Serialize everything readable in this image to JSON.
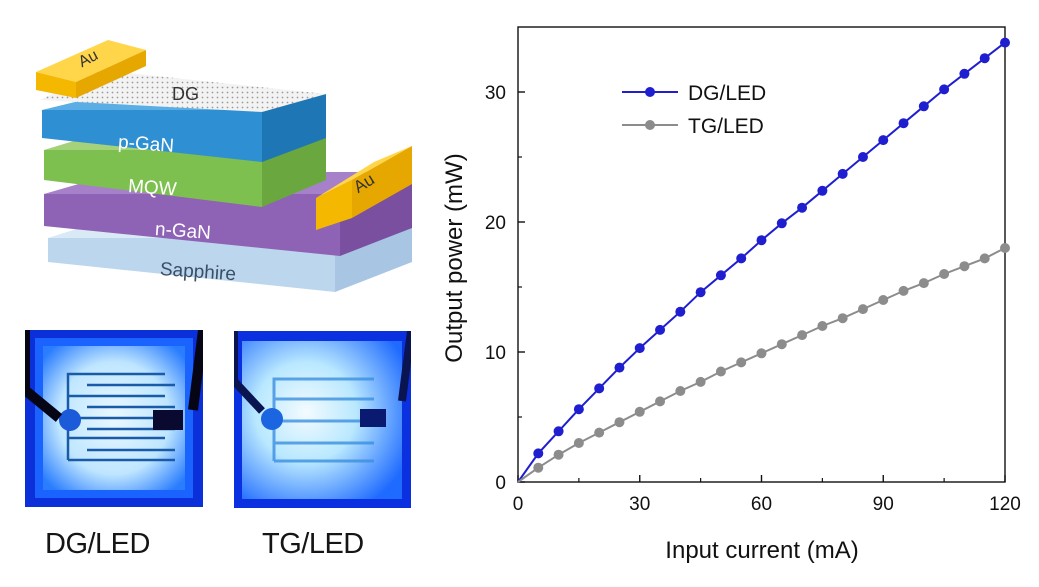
{
  "figure": {
    "layers": {
      "dg": "DG",
      "p_gan": "p-GaN",
      "mqw": "MQW",
      "n_gan": "n-GaN",
      "sapphire": "Sapphire",
      "au_top": "Au",
      "au_side": "Au"
    },
    "photos": {
      "dg_label": "DG/LED",
      "tg_label": "TG/LED"
    },
    "colors": {
      "p_gan": "#2f8fd3",
      "mqw": "#7ec04f",
      "n_gan": "#8e62b4",
      "sapphire": "#b7d3ec",
      "au": "#f5b800",
      "dg_series": "#1f1fd0",
      "tg_series": "#8c8c8c"
    }
  },
  "chart_data": {
    "type": "line",
    "xlabel": "Input current (mA)",
    "ylabel": "Output power (mW)",
    "xlim": [
      0,
      120
    ],
    "ylim": [
      0,
      35
    ],
    "xticks": [
      0,
      30,
      60,
      90,
      120
    ],
    "yticks": [
      0,
      10,
      20,
      30
    ],
    "grid": false,
    "legend_position": "top-left",
    "series": [
      {
        "name": "DG/LED",
        "marker": "circle",
        "x": [
          0,
          5,
          10,
          15,
          20,
          25,
          30,
          35,
          40,
          45,
          50,
          55,
          60,
          65,
          70,
          75,
          80,
          85,
          90,
          95,
          100,
          105,
          110,
          115,
          120
        ],
        "y": [
          0,
          2.2,
          3.9,
          5.6,
          7.2,
          8.8,
          10.3,
          11.7,
          13.1,
          14.6,
          15.9,
          17.2,
          18.6,
          19.9,
          21.1,
          22.4,
          23.7,
          25.0,
          26.3,
          27.6,
          28.9,
          30.2,
          31.4,
          32.6,
          33.8
        ]
      },
      {
        "name": "TG/LED",
        "marker": "circle",
        "x": [
          0,
          5,
          10,
          15,
          20,
          25,
          30,
          35,
          40,
          45,
          50,
          55,
          60,
          65,
          70,
          75,
          80,
          85,
          90,
          95,
          100,
          105,
          110,
          115,
          120
        ],
        "y": [
          0,
          1.1,
          2.1,
          3.0,
          3.8,
          4.6,
          5.4,
          6.2,
          7.0,
          7.7,
          8.5,
          9.2,
          9.9,
          10.6,
          11.3,
          12.0,
          12.6,
          13.3,
          14.0,
          14.7,
          15.3,
          16.0,
          16.6,
          17.2,
          18.0
        ]
      }
    ]
  }
}
